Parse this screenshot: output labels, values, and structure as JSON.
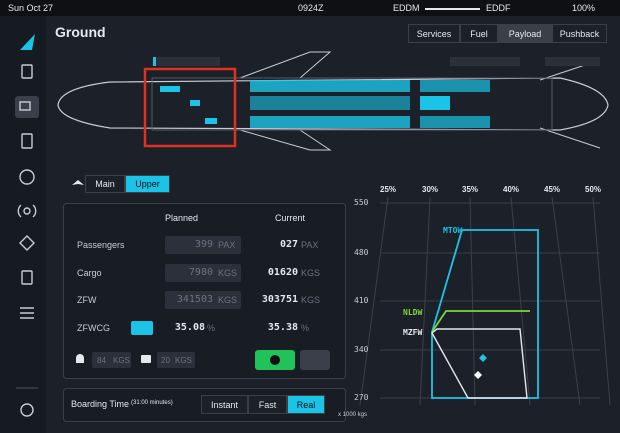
{
  "status_bar": {
    "date": "Sun Oct 27",
    "time": "0924Z",
    "origin": "EDDM",
    "destination": "EDDF",
    "battery": "100%"
  },
  "header": {
    "title": "Ground",
    "tabs": [
      "Services",
      "Fuel",
      "Payload",
      "Pushback"
    ],
    "active_tab": "Payload"
  },
  "deck_toggle": {
    "options": [
      "Main",
      "Upper"
    ],
    "active": "Upper"
  },
  "payload_table": {
    "headers": [
      "Planned",
      "Current"
    ],
    "rows": [
      {
        "label": "Passengers",
        "planned": "399",
        "planned_unit": "PAX",
        "current": "027",
        "current_unit": "PAX"
      },
      {
        "label": "Cargo",
        "planned": "7980",
        "planned_unit": "KGS",
        "current": "01620",
        "current_unit": "KGS"
      },
      {
        "label": "ZFW",
        "planned": "341503",
        "planned_unit": "KGS",
        "current": "303751",
        "current_unit": "KGS"
      },
      {
        "label": "ZFWCG",
        "planned": "35.08",
        "planned_unit": "%",
        "current": "35.38",
        "current_unit": "%"
      }
    ],
    "pax_weight": "84",
    "pax_weight_unit": "KGS",
    "bag_weight": "20",
    "bag_weight_unit": "KGS"
  },
  "boarding": {
    "label": "Boarding Time",
    "duration": "(31:00 minutes)",
    "options": [
      "Instant",
      "Fast",
      "Real"
    ],
    "active": "Real"
  },
  "envelope_chart": {
    "x_tick_labels": [
      "25%",
      "30%",
      "35%",
      "40%",
      "45%",
      "50%"
    ],
    "y_tick_labels": [
      "550",
      "480",
      "410",
      "340",
      "270"
    ],
    "y_unit": "x 1000 kgs",
    "limit_labels": [
      "MTOW",
      "NLDW",
      "MZFW"
    ]
  }
}
